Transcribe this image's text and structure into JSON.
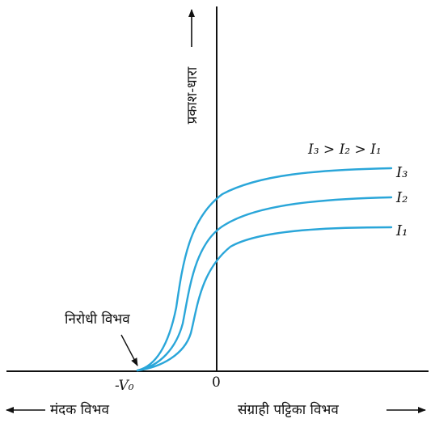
{
  "diagram": {
    "y_axis_label": "प्रकाश-धारा",
    "x_left_label": "मंदक विभव",
    "x_right_label": "संग्राही पट्टिका विभव",
    "origin_label": "0",
    "stopping_potential_tick": "-V₀",
    "stopping_potential_name": "निरोधी विभव",
    "relation": "I₃ > I₂ > I₁",
    "curves": [
      {
        "name": "I₃",
        "saturation_level": 3
      },
      {
        "name": "I₂",
        "saturation_level": 2
      },
      {
        "name": "I₁",
        "saturation_level": 1
      }
    ],
    "curve_color": "#2aa6d9",
    "axis_color": "#111111"
  }
}
